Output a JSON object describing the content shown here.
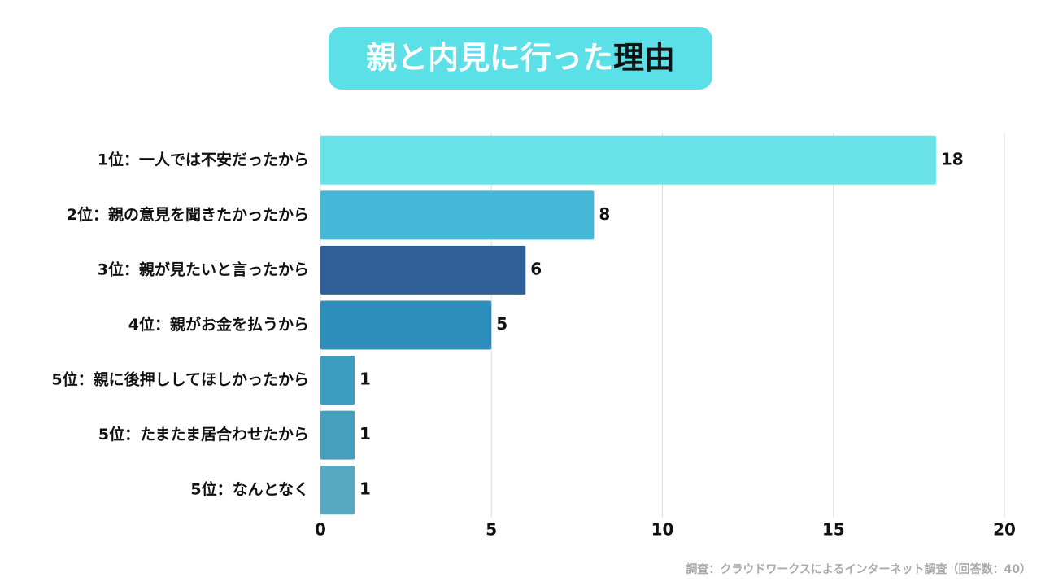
{
  "chart_data": {
    "type": "barh",
    "title": [
      "親と内見に行った",
      "理由"
    ],
    "categories": [
      "1位：一人では不安だったから",
      "2位：親の意見を聞きたかったから",
      "3位：親が見たいと言ったから",
      "4位：親がお金を払うから",
      "5位：親に後押ししてほしかったから",
      "5位：たまたま居合わせたから",
      "5位：なんとなく"
    ],
    "values": [
      18,
      8,
      6,
      5,
      1,
      1,
      1
    ],
    "colors": [
      "#6ae3e8",
      "#44b8d6",
      "#2e5f96",
      "#2e8ebb",
      "#3d9cbf",
      "#469fbd",
      "#56a9c0"
    ],
    "xlim": [
      0,
      20
    ],
    "xticks": [
      0,
      5,
      10,
      15,
      20
    ],
    "grid": true,
    "source": "調査：クラウドワークスによるインターネット調査（回答数：40）"
  }
}
